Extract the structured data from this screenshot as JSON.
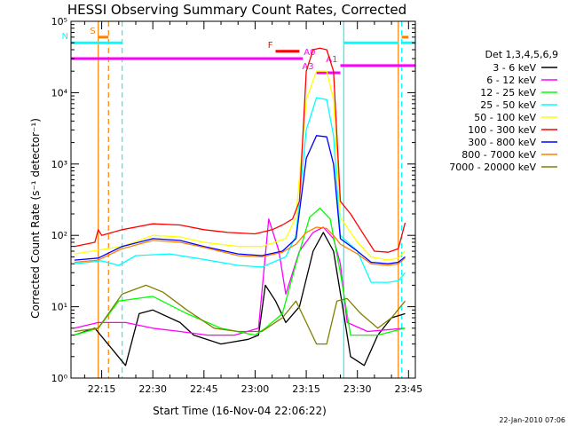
{
  "chart_data": {
    "type": "line",
    "title": "HESSI Observing Summary Count Rates, Corrected",
    "xlabel": "Start Time (16-Nov-04 22:06:22)",
    "ylabel": "Corrected Count Rate (s⁻¹ detector⁻¹)",
    "yscale": "log",
    "xlim": [
      "22:06",
      "23:47"
    ],
    "ylim": [
      1,
      100000
    ],
    "x_ticks": [
      "22:15",
      "22:30",
      "22:45",
      "23:00",
      "23:15",
      "23:30",
      "23:45"
    ],
    "y_ticks": [
      {
        "value": 1,
        "label": "10⁰"
      },
      {
        "value": 10,
        "label": "10¹"
      },
      {
        "value": 100,
        "label": "10²"
      },
      {
        "value": 1000,
        "label": "10³"
      },
      {
        "value": 10000,
        "label": "10⁴"
      },
      {
        "value": 100000,
        "label": "10⁵"
      }
    ],
    "legend_title": "Det 1,3,4,5,6,9",
    "legend_position": "right",
    "footer": "22-Jan-2010 07:06",
    "series": [
      {
        "name": "3 - 6 keV",
        "color": "#000000",
        "points": [
          [
            "22:07",
            4
          ],
          [
            "22:13",
            5
          ],
          [
            "22:22",
            1.5
          ],
          [
            "22:26",
            8
          ],
          [
            "22:30",
            9
          ],
          [
            "22:38",
            6
          ],
          [
            "22:42",
            4
          ],
          [
            "22:50",
            3
          ],
          [
            "22:58",
            3.5
          ],
          [
            "23:01",
            4
          ],
          [
            "23:03",
            20
          ],
          [
            "23:06",
            12
          ],
          [
            "23:09",
            6
          ],
          [
            "23:13",
            10
          ],
          [
            "23:17",
            60
          ],
          [
            "23:20",
            110
          ],
          [
            "23:23",
            60
          ],
          [
            "23:26",
            8
          ],
          [
            "23:28",
            2
          ],
          [
            "23:32",
            1.5
          ],
          [
            "23:36",
            4
          ],
          [
            "23:40",
            7
          ],
          [
            "23:44",
            8
          ]
        ]
      },
      {
        "name": "6 - 12 keV",
        "color": "#ff00ff",
        "points": [
          [
            "22:07",
            5
          ],
          [
            "22:14",
            6
          ],
          [
            "22:22",
            6
          ],
          [
            "22:30",
            5
          ],
          [
            "22:38",
            4.5
          ],
          [
            "22:46",
            4
          ],
          [
            "22:54",
            4
          ],
          [
            "23:01",
            5
          ],
          [
            "23:04",
            170
          ],
          [
            "23:07",
            60
          ],
          [
            "23:09",
            15
          ],
          [
            "23:13",
            60
          ],
          [
            "23:17",
            110
          ],
          [
            "23:20",
            130
          ],
          [
            "23:23",
            90
          ],
          [
            "23:25",
            40
          ],
          [
            "23:27",
            6
          ],
          [
            "23:33",
            4.5
          ],
          [
            "23:44",
            5
          ]
        ]
      },
      {
        "name": "12 - 25 keV",
        "color": "#00ff00",
        "points": [
          [
            "22:07",
            4
          ],
          [
            "22:14",
            5
          ],
          [
            "22:20",
            12
          ],
          [
            "22:30",
            14
          ],
          [
            "22:40",
            8
          ],
          [
            "22:50",
            5
          ],
          [
            "23:00",
            4
          ],
          [
            "23:03",
            5
          ],
          [
            "23:08",
            8
          ],
          [
            "23:12",
            40
          ],
          [
            "23:16",
            180
          ],
          [
            "23:19",
            240
          ],
          [
            "23:22",
            170
          ],
          [
            "23:25",
            30
          ],
          [
            "23:28",
            4
          ],
          [
            "23:36",
            4
          ],
          [
            "23:44",
            5
          ]
        ]
      },
      {
        "name": "25 - 50 keV",
        "color": "#00ffff",
        "points": [
          [
            "22:07",
            40
          ],
          [
            "22:15",
            44
          ],
          [
            "22:20",
            38
          ],
          [
            "22:25",
            52
          ],
          [
            "22:35",
            55
          ],
          [
            "22:45",
            46
          ],
          [
            "22:55",
            38
          ],
          [
            "23:02",
            36
          ],
          [
            "23:09",
            50
          ],
          [
            "23:12",
            100
          ],
          [
            "23:15",
            3000
          ],
          [
            "23:18",
            8500
          ],
          [
            "23:21",
            8000
          ],
          [
            "23:23",
            2500
          ],
          [
            "23:25",
            100
          ],
          [
            "23:30",
            60
          ],
          [
            "23:34",
            22
          ],
          [
            "23:39",
            22
          ],
          [
            "23:42",
            23
          ],
          [
            "23:44",
            30
          ]
        ]
      },
      {
        "name": "50 - 100 keV",
        "color": "#ffff00",
        "points": [
          [
            "22:07",
            55
          ],
          [
            "22:14",
            62
          ],
          [
            "22:21",
            70
          ],
          [
            "22:30",
            100
          ],
          [
            "22:38",
            95
          ],
          [
            "22:45",
            80
          ],
          [
            "22:55",
            70
          ],
          [
            "23:02",
            70
          ],
          [
            "23:09",
            90
          ],
          [
            "23:12",
            180
          ],
          [
            "23:15",
            8000
          ],
          [
            "23:18",
            20000
          ],
          [
            "23:21",
            20000
          ],
          [
            "23:23",
            8000
          ],
          [
            "23:25",
            180
          ],
          [
            "23:30",
            80
          ],
          [
            "23:34",
            50
          ],
          [
            "23:39",
            45
          ],
          [
            "23:42",
            48
          ],
          [
            "23:44",
            60
          ]
        ]
      },
      {
        "name": "100 - 300 keV",
        "color": "#ff0000",
        "points": [
          [
            "22:07",
            70
          ],
          [
            "22:13",
            80
          ],
          [
            "22:14",
            120
          ],
          [
            "22:15",
            100
          ],
          [
            "22:21",
            120
          ],
          [
            "22:30",
            145
          ],
          [
            "22:38",
            140
          ],
          [
            "22:45",
            120
          ],
          [
            "22:52",
            110
          ],
          [
            "23:00",
            105
          ],
          [
            "23:05",
            120
          ],
          [
            "23:08",
            140
          ],
          [
            "23:11",
            170
          ],
          [
            "23:13",
            300
          ],
          [
            "23:15",
            20000
          ],
          [
            "23:17",
            40000
          ],
          [
            "23:19",
            42000
          ],
          [
            "23:21",
            40000
          ],
          [
            "23:23",
            20000
          ],
          [
            "23:25",
            300
          ],
          [
            "23:28",
            200
          ],
          [
            "23:32",
            100
          ],
          [
            "23:35",
            60
          ],
          [
            "23:39",
            58
          ],
          [
            "23:42",
            65
          ],
          [
            "23:44",
            150
          ]
        ]
      },
      {
        "name": "300 - 800 keV",
        "color": "#0000ff",
        "points": [
          [
            "22:07",
            45
          ],
          [
            "22:14",
            48
          ],
          [
            "22:21",
            70
          ],
          [
            "22:30",
            90
          ],
          [
            "22:38",
            85
          ],
          [
            "22:45",
            70
          ],
          [
            "22:55",
            55
          ],
          [
            "23:02",
            52
          ],
          [
            "23:08",
            60
          ],
          [
            "23:12",
            90
          ],
          [
            "23:15",
            1200
          ],
          [
            "23:18",
            2500
          ],
          [
            "23:21",
            2400
          ],
          [
            "23:23",
            1000
          ],
          [
            "23:25",
            90
          ],
          [
            "23:30",
            60
          ],
          [
            "23:34",
            42
          ],
          [
            "23:39",
            40
          ],
          [
            "23:42",
            42
          ],
          [
            "23:44",
            50
          ]
        ]
      },
      {
        "name": "800 - 7000 keV",
        "color": "#ff8000",
        "points": [
          [
            "22:07",
            42
          ],
          [
            "22:14",
            45
          ],
          [
            "22:21",
            65
          ],
          [
            "22:30",
            85
          ],
          [
            "22:38",
            80
          ],
          [
            "22:45",
            68
          ],
          [
            "22:55",
            52
          ],
          [
            "23:02",
            50
          ],
          [
            "23:08",
            58
          ],
          [
            "23:12",
            75
          ],
          [
            "23:15",
            110
          ],
          [
            "23:18",
            130
          ],
          [
            "23:21",
            125
          ],
          [
            "23:23",
            100
          ],
          [
            "23:25",
            75
          ],
          [
            "23:30",
            55
          ],
          [
            "23:34",
            40
          ],
          [
            "23:39",
            38
          ],
          [
            "23:42",
            40
          ],
          [
            "23:44",
            48
          ]
        ]
      },
      {
        "name": "7000 - 20000 keV",
        "color": "#808000",
        "points": [
          [
            "22:07",
            4.5
          ],
          [
            "22:14",
            5
          ],
          [
            "22:21",
            15
          ],
          [
            "22:28",
            20
          ],
          [
            "22:33",
            16
          ],
          [
            "22:40",
            9
          ],
          [
            "22:48",
            5
          ],
          [
            "22:55",
            4.5
          ],
          [
            "23:02",
            4.5
          ],
          [
            "23:08",
            7
          ],
          [
            "23:12",
            12
          ],
          [
            "23:15",
            6
          ],
          [
            "23:18",
            3
          ],
          [
            "23:21",
            3
          ],
          [
            "23:24",
            12
          ],
          [
            "23:27",
            13
          ],
          [
            "23:31",
            8
          ],
          [
            "23:36",
            5
          ],
          [
            "23:40",
            7
          ],
          [
            "23:44",
            12
          ]
        ]
      }
    ],
    "vertical_lines": [
      {
        "x": "22:14",
        "color": "#ff8000",
        "style": "solid"
      },
      {
        "x": "22:17",
        "color": "#ff8000",
        "style": "dashed"
      },
      {
        "x": "22:21",
        "color": "#00ffff",
        "style": "dashed"
      },
      {
        "x": "23:26",
        "color": "#00ffff",
        "style": "solid"
      },
      {
        "x": "23:42",
        "color": "#ff8000",
        "style": "solid"
      },
      {
        "x": "23:43",
        "color": "#00ffff",
        "style": "dashed"
      }
    ],
    "annotations": [
      {
        "label": "S",
        "color": "#ff8000",
        "x_start": "22:14",
        "x_end": "22:17",
        "y": 60000
      },
      {
        "label": "N",
        "color": "#00ffff",
        "x_start": "22:06",
        "x_end": "22:21",
        "y": 50000
      },
      {
        "label": "",
        "color": "#00ffff",
        "x_start": "23:26",
        "x_end": "23:42",
        "y": 50000
      },
      {
        "label": "",
        "color": "#00ffff",
        "x_start": "23:43",
        "x_end": "23:47",
        "y": 50000
      },
      {
        "label": "",
        "color": "#ff8000",
        "x_start": "23:43",
        "x_end": "23:45",
        "y": 60000
      },
      {
        "label": "F",
        "color": "#ff0000",
        "x_start": "23:06",
        "x_end": "23:13",
        "y": 38000
      },
      {
        "label": "",
        "color": "#ff00ff",
        "x_start": "22:06",
        "x_end": "23:14",
        "y": 30000
      },
      {
        "label": "A0",
        "color": "#ff00ff",
        "x_start": "23:16",
        "x_end": "23:16",
        "y": 30000
      },
      {
        "label": "A1",
        "color": "#ff00ff",
        "x_start": "23:25",
        "x_end": "23:47",
        "y": 24000
      },
      {
        "label": "A3",
        "color": "#ff00ff",
        "x_start": "23:18",
        "x_end": "23:25",
        "y": 19000
      }
    ]
  }
}
